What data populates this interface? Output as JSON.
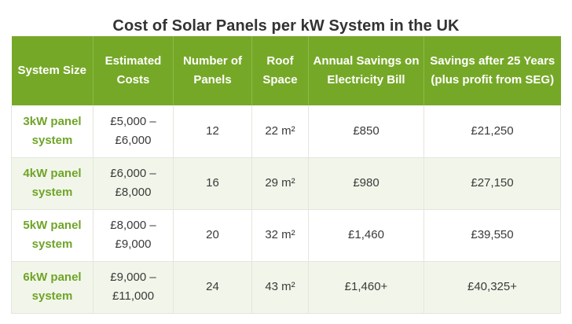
{
  "title": "Cost of Solar Panels per kW System in the UK",
  "table": {
    "headers": [
      "System Size",
      "Estimated Costs",
      "Number of Panels",
      "Roof Space",
      "Annual Savings on Electricity Bill",
      "Savings after 25 Years (plus profit from SEG)"
    ],
    "rows": [
      {
        "size": "3kW panel system",
        "cost": "£5,000 – £6,000",
        "panels": "12",
        "roof": "22 m²",
        "annual": "£850",
        "savings25": "£21,250"
      },
      {
        "size": "4kW panel system",
        "cost": "£6,000 – £8,000",
        "panels": "16",
        "roof": "29 m²",
        "annual": "£980",
        "savings25": "£27,150"
      },
      {
        "size": "5kW panel system",
        "cost": "£8,000 – £9,000",
        "panels": "20",
        "roof": "32 m²",
        "annual": "£1,460",
        "savings25": "£39,550"
      },
      {
        "size": "6kW panel system",
        "cost": "£9,000 – £11,000",
        "panels": "24",
        "roof": "43 m²",
        "annual": "£1,460+",
        "savings25": "£40,325+"
      }
    ]
  },
  "colors": {
    "header_bg": "#76a828",
    "size_text": "#6fa428",
    "stripe_bg": "#f2f6ea"
  }
}
